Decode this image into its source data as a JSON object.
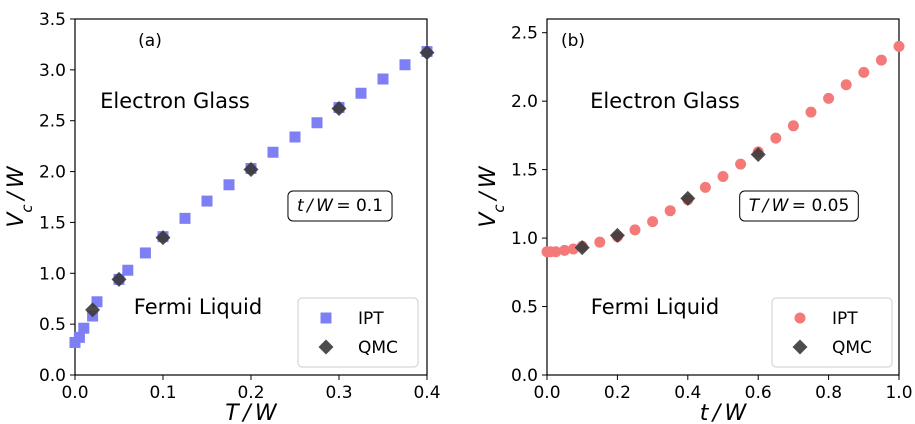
{
  "chart_data": [
    {
      "type": "scatter",
      "panel_label": "(a)",
      "xlabel": "T / W",
      "ylabel": "V_c / W",
      "xlim": [
        0.0,
        0.4
      ],
      "ylim": [
        0.0,
        3.5
      ],
      "xticks": [
        "0.0",
        "0.1",
        "0.2",
        "0.3",
        "0.4"
      ],
      "yticks": [
        "0.0",
        "0.5",
        "1.0",
        "1.5",
        "2.0",
        "2.5",
        "3.0",
        "3.5"
      ],
      "regions": [
        "Electron Glass",
        "Fermi Liquid"
      ],
      "annotation": "t / W = 0.1",
      "legend_position": "lower right",
      "series": [
        {
          "name": "IPT",
          "marker": "square",
          "color": "#7f7ff5",
          "x": [
            0.0,
            0.005,
            0.01,
            0.02,
            0.025,
            0.05,
            0.06,
            0.08,
            0.1,
            0.125,
            0.15,
            0.175,
            0.2,
            0.225,
            0.25,
            0.275,
            0.3,
            0.325,
            0.35,
            0.375,
            0.4
          ],
          "y": [
            0.32,
            0.37,
            0.46,
            0.58,
            0.72,
            0.94,
            1.03,
            1.2,
            1.36,
            1.54,
            1.71,
            1.87,
            2.03,
            2.19,
            2.34,
            2.48,
            2.63,
            2.77,
            2.91,
            3.05,
            3.18
          ]
        },
        {
          "name": "QMC",
          "marker": "diamond",
          "color": "#3a3a3a",
          "x": [
            0.02,
            0.05,
            0.1,
            0.2,
            0.3,
            0.4
          ],
          "y": [
            0.64,
            0.94,
            1.35,
            2.02,
            2.62,
            3.17
          ]
        }
      ]
    },
    {
      "type": "scatter",
      "panel_label": "(b)",
      "xlabel": "t / W",
      "ylabel": "V_c / W",
      "xlim": [
        0.0,
        1.0
      ],
      "ylim": [
        0.0,
        2.6
      ],
      "xticks": [
        "0.0",
        "0.2",
        "0.4",
        "0.6",
        "0.8",
        "1.0"
      ],
      "yticks": [
        "0.0",
        "0.5",
        "1.0",
        "1.5",
        "2.0",
        "2.5"
      ],
      "regions": [
        "Electron Glass",
        "Fermi Liquid"
      ],
      "annotation": "T / W = 0.05",
      "legend_position": "lower right",
      "series": [
        {
          "name": "IPT",
          "marker": "circle",
          "color": "#f47a7a",
          "x": [
            0.0,
            0.01,
            0.025,
            0.05,
            0.075,
            0.1,
            0.15,
            0.2,
            0.25,
            0.3,
            0.35,
            0.4,
            0.45,
            0.5,
            0.55,
            0.6,
            0.65,
            0.7,
            0.75,
            0.8,
            0.85,
            0.9,
            0.95,
            1.0
          ],
          "y": [
            0.9,
            0.9,
            0.9,
            0.91,
            0.92,
            0.94,
            0.97,
            1.01,
            1.06,
            1.12,
            1.2,
            1.28,
            1.37,
            1.45,
            1.54,
            1.63,
            1.73,
            1.82,
            1.92,
            2.02,
            2.12,
            2.21,
            2.3,
            2.4
          ]
        },
        {
          "name": "QMC",
          "marker": "diamond",
          "color": "#3a3a3a",
          "x": [
            0.1,
            0.2,
            0.4,
            0.6
          ],
          "y": [
            0.93,
            1.02,
            1.29,
            1.61
          ]
        }
      ]
    }
  ]
}
